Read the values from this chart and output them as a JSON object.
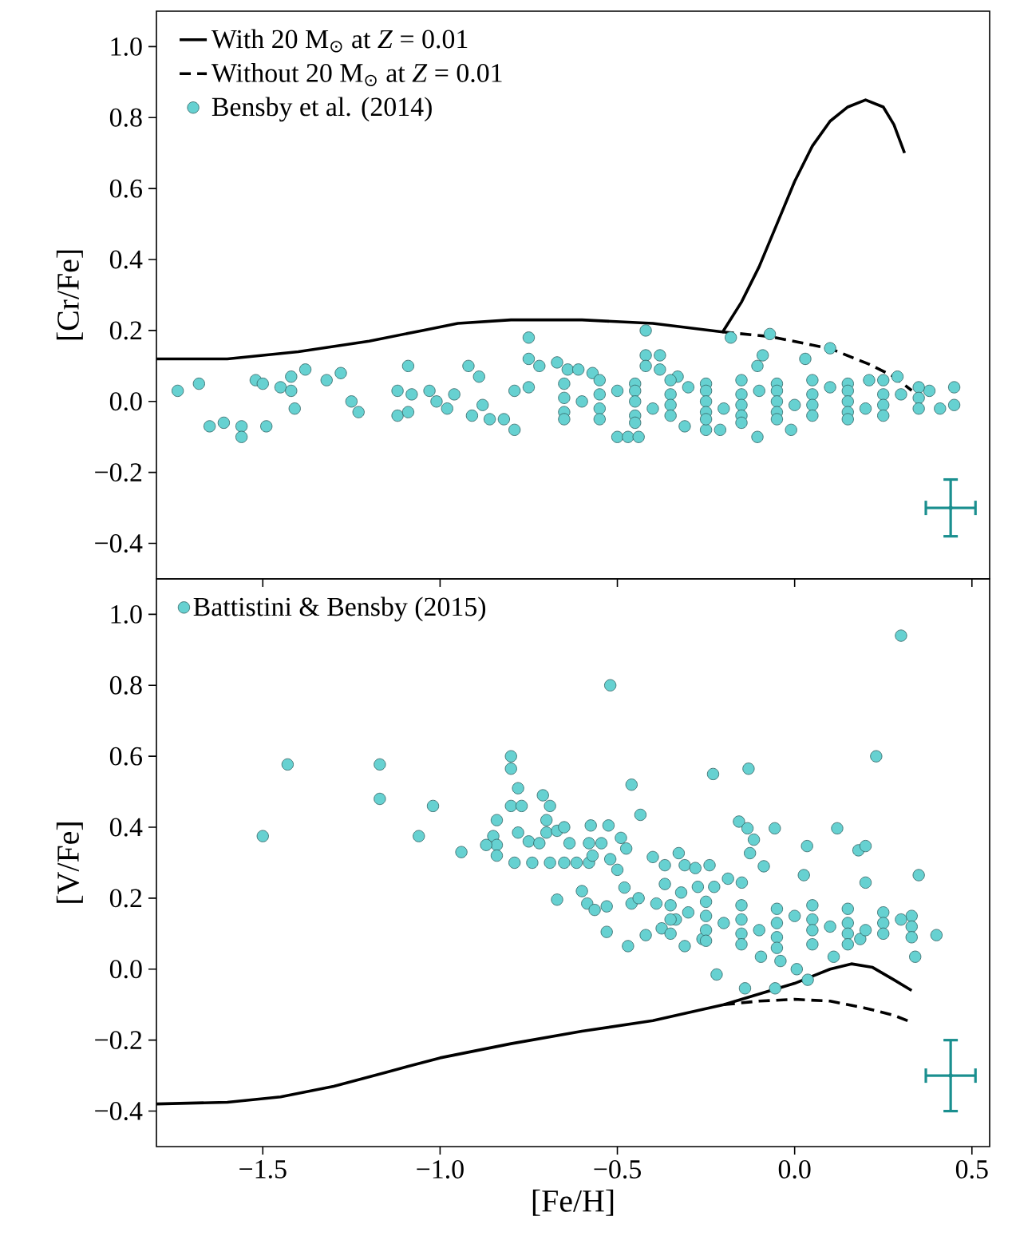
{
  "chart_data": [
    {
      "type": "line",
      "ylabel": "[Cr/Fe]",
      "xlim": [
        -1.8,
        0.55
      ],
      "ylim": [
        -0.5,
        1.1
      ],
      "xticks": [
        {
          "value": -1.5,
          "label": null
        },
        {
          "value": -1.0,
          "label": null
        },
        {
          "value": -0.5,
          "label": null
        },
        {
          "value": 0.0,
          "label": null
        },
        {
          "value": 0.5,
          "label": null
        }
      ],
      "yticks": [
        {
          "value": -0.4,
          "label": "−0.4"
        },
        {
          "value": -0.2,
          "label": "−0.2"
        },
        {
          "value": 0.0,
          "label": "0.0"
        },
        {
          "value": 0.2,
          "label": "0.2"
        },
        {
          "value": 0.4,
          "label": "0.4"
        },
        {
          "value": 0.6,
          "label": "0.6"
        },
        {
          "value": 0.8,
          "label": "0.8"
        },
        {
          "value": 1.0,
          "label": "1.0"
        }
      ],
      "tick_labels": "y",
      "legend": "top left",
      "series": [
        {
          "name": "With 20 M$_{⊙}$ at *Z* = 0.01",
          "color": "#000000",
          "line_style": "solid",
          "marker": "none",
          "x": [
            -1.8,
            -1.6,
            -1.4,
            -1.2,
            -1.05,
            -0.95,
            -0.8,
            -0.6,
            -0.4,
            -0.203,
            -0.15,
            -0.1,
            -0.05,
            0.0,
            0.05,
            0.1,
            0.15,
            0.2,
            0.25,
            0.28,
            0.31
          ],
          "values": [
            0.12,
            0.12,
            0.14,
            0.17,
            0.2,
            0.22,
            0.23,
            0.23,
            0.22,
            0.196,
            0.28,
            0.38,
            0.5,
            0.62,
            0.72,
            0.79,
            0.83,
            0.85,
            0.83,
            0.78,
            0.7
          ]
        },
        {
          "name": "Without 20 M$_{⊙}$ at *Z* = 0.01",
          "color": "#000000",
          "line_style": "dashed",
          "marker": "none",
          "x": [
            -0.203,
            -0.07,
            0.1,
            0.21,
            0.28,
            0.33
          ],
          "values": [
            0.196,
            0.183,
            0.149,
            0.105,
            0.07,
            0.031
          ]
        },
        {
          "type": "scatter",
          "name": "Bensby et al. (2014)",
          "color": "#66d1d1",
          "marker": "circle",
          "x": [
            -1.74,
            -1.68,
            -1.65,
            -1.61,
            -1.56,
            -1.56,
            -1.52,
            -1.5,
            -1.49,
            -1.45,
            -1.42,
            -1.42,
            -1.41,
            -1.38,
            -1.32,
            -1.28,
            -1.25,
            -1.23,
            -1.12,
            -1.12,
            -1.09,
            -1.09,
            -1.08,
            -1.03,
            -1.01,
            -0.98,
            -0.96,
            -0.92,
            -0.91,
            -0.89,
            -0.88,
            -0.86,
            -0.82,
            -0.79,
            -0.79,
            -0.75,
            -0.75,
            -0.72,
            -0.75,
            -0.67,
            -0.64,
            -0.61,
            -0.57,
            -0.5,
            -0.47,
            -0.44,
            -0.42,
            -0.42,
            -0.38,
            -0.42,
            -0.38,
            -0.33,
            -0.31,
            -0.25,
            -0.21,
            -0.18,
            -0.105,
            -0.105,
            -0.09,
            -0.07,
            -0.01,
            0.03,
            0.1,
            0.21,
            0.29,
            0.38,
            0.41,
            0.45,
            0.45,
            -0.65,
            -0.65,
            -0.65,
            -0.65,
            -0.55,
            -0.55,
            -0.55,
            -0.55,
            -0.45,
            -0.45,
            -0.45,
            -0.45,
            -0.45,
            -0.35,
            -0.35,
            -0.35,
            -0.35,
            -0.25,
            -0.25,
            -0.25,
            -0.25,
            -0.25,
            -0.15,
            -0.15,
            -0.15,
            -0.15,
            -0.15,
            -0.05,
            -0.05,
            -0.05,
            -0.05,
            -0.05,
            0.05,
            0.05,
            0.05,
            0.05,
            0.15,
            0.15,
            0.15,
            0.15,
            0.15,
            0.25,
            0.25,
            0.25,
            0.25,
            0.35,
            0.35,
            0.35,
            -0.6,
            -0.5,
            -0.4,
            -0.3,
            -0.2,
            -0.1,
            0.0,
            0.1,
            0.2,
            0.3
          ],
          "values": [
            0.03,
            0.05,
            -0.07,
            -0.06,
            -0.07,
            -0.1,
            0.06,
            0.05,
            -0.07,
            0.04,
            0.07,
            0.03,
            -0.02,
            0.09,
            0.06,
            0.08,
            0.0,
            -0.03,
            0.03,
            -0.04,
            0.1,
            -0.03,
            0.02,
            0.03,
            0.0,
            -0.02,
            0.02,
            0.1,
            -0.04,
            0.07,
            -0.01,
            -0.05,
            -0.05,
            -0.08,
            0.03,
            0.18,
            0.12,
            0.1,
            0.04,
            0.11,
            0.09,
            0.09,
            0.08,
            -0.1,
            -0.1,
            -0.1,
            0.2,
            0.13,
            0.13,
            0.1,
            0.09,
            0.07,
            -0.07,
            -0.08,
            -0.08,
            0.18,
            0.1,
            -0.1,
            0.13,
            0.19,
            -0.08,
            0.12,
            0.15,
            0.06,
            0.07,
            0.03,
            -0.02,
            0.04,
            -0.01,
            0.05,
            0.01,
            -0.03,
            -0.05,
            0.06,
            0.02,
            -0.02,
            -0.05,
            0.05,
            0.03,
            0.0,
            -0.04,
            -0.06,
            0.06,
            0.02,
            -0.01,
            -0.04,
            0.05,
            0.03,
            0.0,
            -0.03,
            -0.05,
            0.06,
            0.02,
            -0.01,
            -0.04,
            -0.06,
            0.05,
            0.03,
            0.0,
            -0.03,
            -0.05,
            0.06,
            0.02,
            -0.01,
            -0.04,
            0.05,
            0.03,
            0.0,
            -0.03,
            -0.05,
            0.06,
            0.02,
            -0.01,
            -0.04,
            0.04,
            0.01,
            -0.02,
            0.0,
            0.03,
            -0.02,
            0.04,
            -0.02,
            0.03,
            -0.01,
            0.04,
            -0.02,
            0.02
          ]
        },
        {
          "type": "scatter",
          "color": "#1a8f8f",
          "x": [
            0.44
          ],
          "values": [
            -0.3
          ],
          "errors": [
            0.08
          ],
          "xerrors": [
            0.07
          ]
        }
      ]
    },
    {
      "type": "line",
      "ylabel": "[V/Fe]",
      "xlabel": "[Fe/H]",
      "xlim": [
        -1.8,
        0.55
      ],
      "ylim": [
        -0.5,
        1.1
      ],
      "xticks": [
        {
          "value": -1.5,
          "label": "−1.5"
        },
        {
          "value": -1.0,
          "label": "−1.0"
        },
        {
          "value": -0.5,
          "label": "−0.5"
        },
        {
          "value": 0.0,
          "label": "0.0"
        },
        {
          "value": 0.5,
          "label": "0.5"
        }
      ],
      "yticks": [
        {
          "value": -0.4,
          "label": "−0.4"
        },
        {
          "value": -0.2,
          "label": "−0.2"
        },
        {
          "value": 0.0,
          "label": "0.0"
        },
        {
          "value": 0.2,
          "label": "0.2"
        },
        {
          "value": 0.4,
          "label": "0.4"
        },
        {
          "value": 0.6,
          "label": "0.6"
        },
        {
          "value": 0.8,
          "label": "0.8"
        },
        {
          "value": 1.0,
          "label": "1.0"
        }
      ],
      "legend": "top left",
      "series": [
        {
          "color": "#000000",
          "line_style": "solid",
          "marker": "none",
          "x": [
            -1.8,
            -1.6,
            -1.45,
            -1.3,
            -1.15,
            -1.0,
            -0.8,
            -0.6,
            -0.4,
            -0.2,
            0.0,
            0.1,
            0.16,
            0.22,
            0.28,
            0.33
          ],
          "values": [
            -0.38,
            -0.375,
            -0.36,
            -0.33,
            -0.29,
            -0.25,
            -0.21,
            -0.175,
            -0.145,
            -0.1,
            -0.04,
            0.0,
            0.015,
            0.005,
            -0.03,
            -0.06
          ]
        },
        {
          "color": "#000000",
          "line_style": "dashed",
          "marker": "none",
          "x": [
            -0.2,
            -0.1,
            0.0,
            0.1,
            0.2,
            0.28,
            0.33
          ],
          "values": [
            -0.1,
            -0.09,
            -0.085,
            -0.09,
            -0.11,
            -0.13,
            -0.15
          ]
        },
        {
          "type": "scatter",
          "name": "Battistini & Bensby (2015)",
          "color": "#66d1d1",
          "marker": "circle",
          "x": [
            -1.5,
            -1.43,
            -1.17,
            -1.17,
            -1.06,
            -1.02,
            -0.94,
            -0.52,
            0.3,
            0.23,
            -0.8,
            -0.8,
            -0.78,
            -0.8,
            -0.77,
            -0.71,
            -0.69,
            -0.84,
            -0.85,
            -0.84,
            -0.84,
            -0.87,
            -0.79,
            -0.78,
            -0.75,
            -0.72,
            -0.7,
            -0.7,
            -0.67,
            -0.65,
            -0.74,
            -0.69,
            -0.65,
            -0.615,
            -0.58,
            -0.635,
            -0.58,
            -0.57,
            -0.545,
            -0.575,
            -0.525,
            -0.46,
            -0.435,
            -0.23,
            -0.13,
            -0.157,
            -0.133,
            -0.115,
            -0.126,
            -0.087,
            -0.056,
            0.035,
            0.026,
            0.12,
            0.18,
            0.2,
            0.2,
            0.35,
            0.4,
            0.34,
            -0.22,
            -0.14,
            -0.055,
            0.006,
            0.037,
            -0.67,
            -0.53,
            -0.47,
            -0.42,
            -0.6,
            -0.585,
            -0.564,
            -0.53,
            -0.52,
            -0.5,
            -0.475,
            -0.49,
            -0.48,
            -0.46,
            -0.44,
            -0.4,
            -0.366,
            -0.327,
            -0.31,
            -0.28,
            -0.24,
            -0.366,
            -0.32,
            -0.273,
            -0.227,
            -0.188,
            -0.149,
            -0.095,
            -0.04,
            0.11,
            -0.31,
            -0.26,
            0.185,
            -0.39,
            -0.335,
            -0.375,
            -0.35,
            -0.35,
            -0.35,
            -0.25,
            -0.25,
            -0.25,
            -0.25,
            -0.15,
            -0.15,
            -0.15,
            -0.15,
            -0.05,
            -0.05,
            -0.05,
            -0.05,
            0.05,
            0.05,
            0.05,
            0.05,
            0.15,
            0.15,
            0.15,
            0.15,
            0.25,
            0.25,
            0.25,
            0.33,
            0.33,
            0.33,
            -0.3,
            -0.2,
            -0.1,
            0.0,
            0.1,
            0.2,
            0.3
          ],
          "values": [
            0.375,
            0.577,
            0.577,
            0.48,
            0.375,
            0.46,
            0.33,
            0.8,
            0.94,
            0.6,
            0.6,
            0.565,
            0.51,
            0.46,
            0.46,
            0.49,
            0.46,
            0.42,
            0.375,
            0.35,
            0.32,
            0.35,
            0.3,
            0.385,
            0.36,
            0.355,
            0.42,
            0.385,
            0.39,
            0.4,
            0.3,
            0.3,
            0.3,
            0.3,
            0.3,
            0.355,
            0.355,
            0.32,
            0.355,
            0.405,
            0.405,
            0.52,
            0.435,
            0.55,
            0.565,
            0.416,
            0.397,
            0.365,
            0.327,
            0.29,
            0.397,
            0.347,
            0.265,
            0.397,
            0.335,
            0.347,
            0.244,
            0.265,
            0.096,
            0.035,
            -0.015,
            -0.054,
            -0.054,
            0.0,
            -0.03,
            0.196,
            0.105,
            0.065,
            0.096,
            0.22,
            0.185,
            0.167,
            0.177,
            0.31,
            0.28,
            0.34,
            0.37,
            0.23,
            0.185,
            0.2,
            0.316,
            0.293,
            0.327,
            0.293,
            0.285,
            0.293,
            0.24,
            0.216,
            0.232,
            0.232,
            0.255,
            0.244,
            0.035,
            0.023,
            0.035,
            0.065,
            0.085,
            0.085,
            0.185,
            0.14,
            0.115,
            0.18,
            0.14,
            0.1,
            0.19,
            0.15,
            0.11,
            0.08,
            0.18,
            0.14,
            0.1,
            0.07,
            0.17,
            0.13,
            0.09,
            0.06,
            0.18,
            0.14,
            0.11,
            0.07,
            0.17,
            0.13,
            0.1,
            0.07,
            0.16,
            0.13,
            0.1,
            0.15,
            0.12,
            0.09,
            0.16,
            0.13,
            0.11,
            0.15,
            0.12,
            0.11,
            0.14
          ]
        },
        {
          "type": "scatter",
          "color": "#1a8f8f",
          "x": [
            0.44
          ],
          "values": [
            -0.3
          ],
          "errors": [
            0.1
          ],
          "xerrors": [
            0.07
          ]
        }
      ]
    }
  ]
}
